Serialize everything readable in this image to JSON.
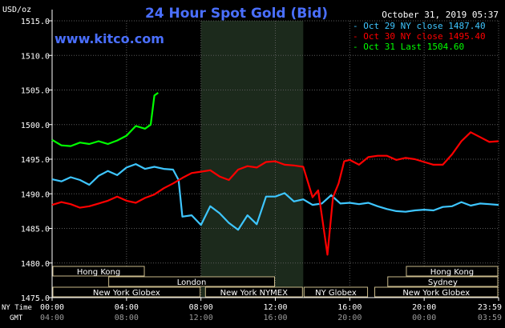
{
  "chart_data": {
    "type": "line",
    "title": "24 Hour Spot Gold (Bid)",
    "source": "www.kitco.com",
    "timestamp": "October 31, 2019 05:37",
    "ylabel": "USD/oz",
    "ylim": [
      1475,
      1515
    ],
    "xlim": [
      0,
      24
    ],
    "grid": true,
    "legend_position": "top-right",
    "y_ticks": [
      "1515.0",
      "1510.0",
      "1505.0",
      "1500.0",
      "1495.0",
      "1490.0",
      "1485.0",
      "1480.0",
      "1475.0"
    ],
    "x_ticks_ny": [
      "00:00",
      "04:00",
      "08:00",
      "12:00",
      "16:00",
      "20:00",
      "23:59"
    ],
    "x_ticks_gmt": [
      "04:00",
      "08:00",
      "12:00",
      "16:00",
      "20:00",
      "00:00",
      "03:59"
    ],
    "x_axis_label_ny": "NY Time",
    "x_axis_label_gmt": "GMT",
    "shaded_region_hours": [
      8,
      13.5
    ],
    "series": [
      {
        "name": "Oct 29 NY close 1487.40",
        "color": "#3ec6ff",
        "x": [
          0,
          0.5,
          1,
          1.5,
          2,
          2.5,
          3,
          3.5,
          4,
          4.5,
          5,
          5.5,
          6,
          6.5,
          6.8,
          7,
          7.5,
          8,
          8.5,
          9,
          9.5,
          10,
          10.5,
          11,
          11.5,
          12,
          12.5,
          13,
          13.5,
          14,
          14.5,
          15,
          15.5,
          16,
          16.5,
          17,
          17.5,
          18,
          18.5,
          19,
          19.5,
          20,
          20.5,
          21,
          21.5,
          22,
          22.5,
          23,
          23.5,
          24
        ],
        "y": [
          1492.1,
          1491.8,
          1492.4,
          1492.0,
          1491.3,
          1492.6,
          1493.3,
          1492.7,
          1493.8,
          1494.3,
          1493.6,
          1493.9,
          1493.6,
          1493.5,
          1492.0,
          1486.7,
          1486.9,
          1485.5,
          1488.2,
          1487.2,
          1485.8,
          1484.8,
          1486.9,
          1485.6,
          1489.6,
          1489.6,
          1490.1,
          1488.9,
          1489.2,
          1488.4,
          1488.6,
          1489.8,
          1488.6,
          1488.7,
          1488.5,
          1488.7,
          1488.2,
          1487.8,
          1487.5,
          1487.4,
          1487.6,
          1487.7,
          1487.6,
          1488.1,
          1488.2,
          1488.8,
          1488.3,
          1488.6,
          1488.5,
          1488.4
        ]
      },
      {
        "name": "Oct 30 NY close 1495.40",
        "color": "#ff0000",
        "x": [
          0,
          0.5,
          1,
          1.5,
          2,
          2.5,
          3,
          3.5,
          4,
          4.5,
          5,
          5.5,
          6,
          6.5,
          7,
          7.5,
          8,
          8.5,
          9,
          9.5,
          10,
          10.5,
          11,
          11.5,
          12,
          12.5,
          13,
          13.5,
          14,
          14.3,
          14.6,
          14.8,
          15.1,
          15.4,
          15.7,
          16,
          16.5,
          17,
          17.5,
          18,
          18.5,
          19,
          19.5,
          20,
          20.5,
          21,
          21.5,
          22,
          22.5,
          23,
          23.5,
          24
        ],
        "y": [
          1488.4,
          1488.8,
          1488.5,
          1488.0,
          1488.2,
          1488.6,
          1489.0,
          1489.6,
          1489.0,
          1488.7,
          1489.4,
          1489.9,
          1490.8,
          1491.5,
          1492.3,
          1493.0,
          1493.2,
          1493.4,
          1492.5,
          1492.0,
          1493.5,
          1494.0,
          1493.8,
          1494.6,
          1494.7,
          1494.2,
          1494.1,
          1493.9,
          1489.5,
          1490.5,
          1485.0,
          1481.2,
          1489.5,
          1491.5,
          1494.7,
          1494.9,
          1494.2,
          1495.3,
          1495.5,
          1495.5,
          1494.9,
          1495.2,
          1495.0,
          1494.6,
          1494.2,
          1494.2,
          1495.7,
          1497.6,
          1498.9,
          1498.2,
          1497.5,
          1497.6
        ]
      },
      {
        "name": "Oct 31 Last 1504.60",
        "color": "#00ff00",
        "x": [
          0,
          0.5,
          1,
          1.5,
          2,
          2.5,
          3,
          3.5,
          4,
          4.5,
          5,
          5.3,
          5.5,
          5.7
        ],
        "y": [
          1497.8,
          1497.0,
          1496.9,
          1497.4,
          1497.2,
          1497.6,
          1497.2,
          1497.7,
          1498.4,
          1499.8,
          1499.4,
          1500.0,
          1504.2,
          1504.6
        ]
      }
    ],
    "sessions": [
      {
        "label": "Hong Kong",
        "start": 0,
        "end": 5
      },
      {
        "label": "London",
        "start": 3,
        "end": 12
      },
      {
        "label": "New York Globex",
        "start": 0,
        "end": 8
      },
      {
        "label": "New York NYMEX",
        "start": 8.2,
        "end": 13.5
      },
      {
        "label": "NY Globex",
        "start": 13.5,
        "end": 17
      },
      {
        "label": "Hong Kong",
        "start": 19,
        "end": 24
      },
      {
        "label": "Sydney",
        "start": 18,
        "end": 24
      },
      {
        "label": "New York Globex",
        "start": 17.3,
        "end": 24
      }
    ]
  }
}
